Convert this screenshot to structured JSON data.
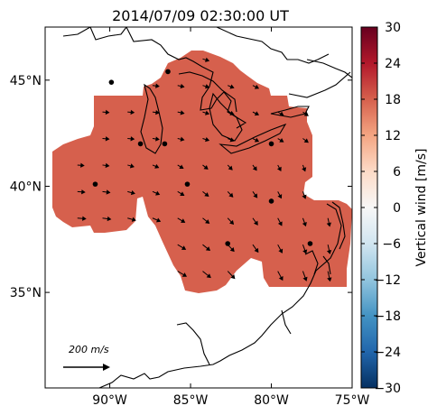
{
  "title": "2014/07/09 02:30:00 UT",
  "map": {
    "lon_range": [
      -94,
      -75
    ],
    "lat_range": [
      30.5,
      47.5
    ],
    "lat_ticks": [
      {
        "value": 45,
        "label": "45°N"
      },
      {
        "value": 40,
        "label": "40°N"
      },
      {
        "value": 35,
        "label": "35°N"
      }
    ],
    "lon_ticks": [
      {
        "value": -90,
        "label": "90°W"
      },
      {
        "value": -85,
        "label": "85°W"
      },
      {
        "value": -80,
        "label": "80°W"
      },
      {
        "value": -75,
        "label": "75°W"
      }
    ],
    "fill_color": "#d6604d",
    "stations": [
      {
        "lon": -89.9,
        "lat": 44.9
      },
      {
        "lon": -86.4,
        "lat": 45.4
      },
      {
        "lon": -88.1,
        "lat": 42.0
      },
      {
        "lon": -86.6,
        "lat": 42.0
      },
      {
        "lon": -80.0,
        "lat": 42.0
      },
      {
        "lon": -90.9,
        "lat": 40.1
      },
      {
        "lon": -85.2,
        "lat": 40.1
      },
      {
        "lon": -80.0,
        "lat": 39.3
      },
      {
        "lon": -82.7,
        "lat": 37.3
      },
      {
        "lon": -77.6,
        "lat": 37.3
      }
    ],
    "scale_label": "200 m/s"
  },
  "colorbar": {
    "label": "Vertical wind [m/s]",
    "min": -30,
    "max": 30,
    "ticks": [
      "30",
      "24",
      "18",
      "12",
      "6",
      "0",
      "−6",
      "−12",
      "−18",
      "−24",
      "−30"
    ],
    "colors": [
      "#67001f",
      "#b2182b",
      "#d6604d",
      "#f4a582",
      "#fddbc7",
      "#f7f7f7",
      "#d1e5f0",
      "#92c5de",
      "#4393c3",
      "#2166ac",
      "#053061"
    ]
  }
}
